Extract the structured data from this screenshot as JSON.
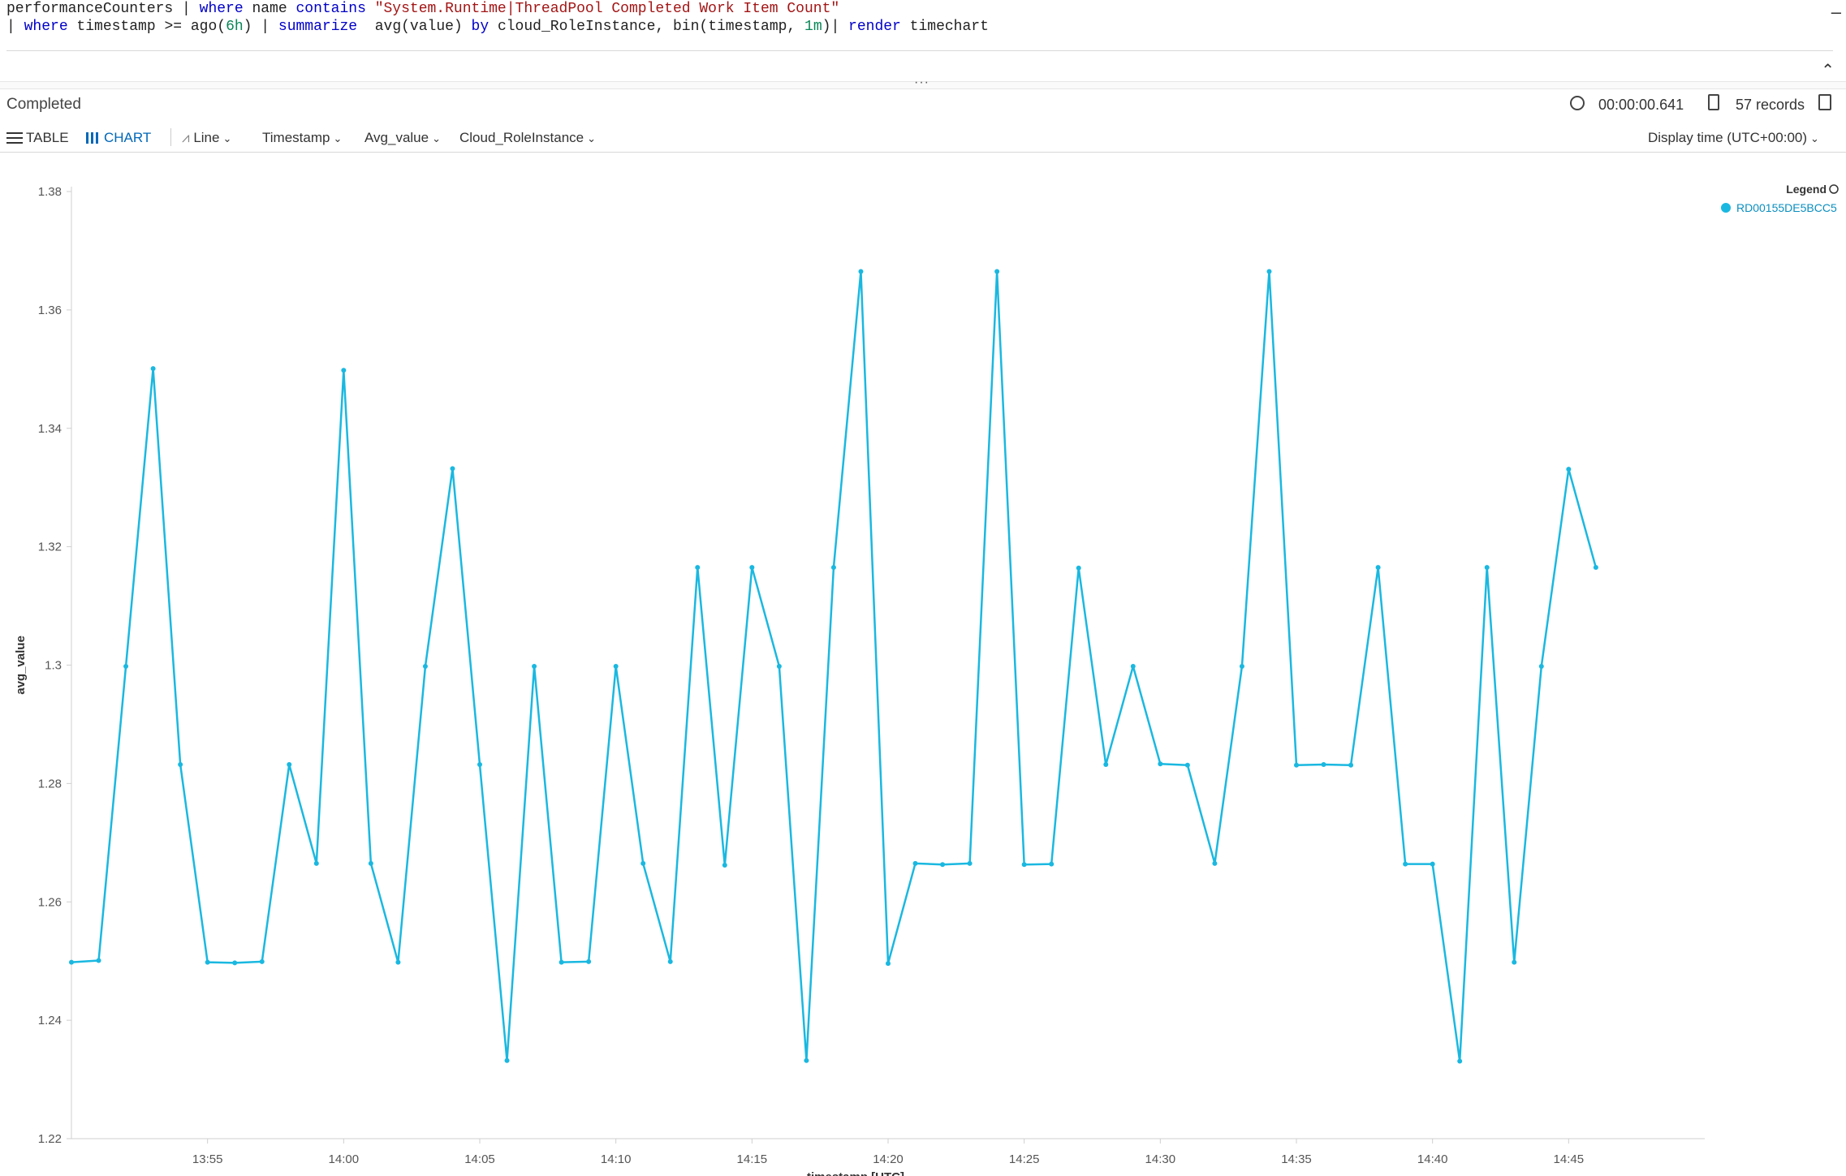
{
  "query": {
    "line1": [
      {
        "t": "performanceCounters | ",
        "c": "txt"
      },
      {
        "t": "where",
        "c": "kw"
      },
      {
        "t": " name ",
        "c": "txt"
      },
      {
        "t": "contains",
        "c": "kw"
      },
      {
        "t": " \"System.Runtime|ThreadPool Completed Work Item Count\"",
        "c": "str"
      }
    ],
    "line2": [
      {
        "t": "| ",
        "c": "txt"
      },
      {
        "t": "where",
        "c": "kw"
      },
      {
        "t": " timestamp >= ago(",
        "c": "txt"
      },
      {
        "t": "6h",
        "c": "num"
      },
      {
        "t": ") | ",
        "c": "txt"
      },
      {
        "t": "summarize",
        "c": "kw"
      },
      {
        "t": "  avg(value) ",
        "c": "txt"
      },
      {
        "t": "by",
        "c": "kw"
      },
      {
        "t": " cloud_RoleInstance, bin(timestamp, ",
        "c": "txt"
      },
      {
        "t": "1m",
        "c": "num"
      },
      {
        "t": ")| ",
        "c": "txt"
      },
      {
        "t": "render",
        "c": "kw"
      },
      {
        "t": " timechart",
        "c": "txt"
      }
    ]
  },
  "status": {
    "text": "Completed",
    "duration": "00:00:00.641",
    "records": "57 records"
  },
  "toolbar": {
    "table_label": "TABLE",
    "chart_label": "CHART",
    "chart_type": "Line",
    "x_column": "Timestamp",
    "y_column": "Avg_value",
    "split_column": "Cloud_RoleInstance",
    "display_time": "Display time (UTC+00:00)"
  },
  "colors": {
    "series": "#1ab8e0",
    "accent": "#0067b8"
  },
  "chart_data": {
    "type": "line",
    "xlabel": "timestamp [UTC]",
    "ylabel": "avg_value",
    "ylim": [
      1.22,
      1.38
    ],
    "yticks": [
      "1.22",
      "1.24",
      "1.26",
      "1.28",
      "1.3",
      "1.32",
      "1.34",
      "1.36",
      "1.38"
    ],
    "xticks": [
      "13:55",
      "14:00",
      "14:05",
      "14:10",
      "14:15",
      "14:20",
      "14:25",
      "14:30",
      "14:35",
      "14:40",
      "14:45"
    ],
    "xtick_minutes": [
      55,
      60,
      65,
      70,
      75,
      80,
      85,
      90,
      95,
      100,
      105
    ],
    "legend_title": "Legend",
    "legend_position": "top-right",
    "grid": false,
    "series": [
      {
        "name": "RD00155DE5BCC5",
        "x_minutes": [
          50,
          51,
          52,
          53,
          54,
          55,
          56,
          57,
          58,
          59,
          60,
          61,
          62,
          63,
          64,
          65,
          66,
          67,
          68,
          69,
          70,
          71,
          72,
          73,
          74,
          75,
          76,
          77,
          78,
          79,
          80,
          81,
          82,
          83,
          84,
          85,
          86,
          87,
          88,
          89,
          90,
          91,
          92,
          93,
          94,
          95,
          96,
          97,
          98,
          99,
          100,
          101,
          102,
          103,
          104,
          105,
          106
        ],
        "values": [
          1.2498,
          1.2501,
          1.2998,
          1.3501,
          1.2832,
          1.2498,
          1.2497,
          1.2499,
          1.2832,
          1.2665,
          1.3498,
          1.2665,
          1.2498,
          1.2998,
          1.3332,
          1.2832,
          1.2332,
          1.2998,
          1.2498,
          1.2499,
          1.2998,
          1.2665,
          1.2499,
          1.3165,
          1.2662,
          1.3165,
          1.2998,
          1.2332,
          1.3165,
          1.3665,
          1.2496,
          1.2665,
          1.2663,
          1.2665,
          1.3665,
          1.2663,
          1.2664,
          1.3164,
          1.2832,
          1.2998,
          1.2833,
          1.2831,
          1.2665,
          1.2998,
          1.3665,
          1.2831,
          1.2832,
          1.2831,
          1.3165,
          1.2664,
          1.2664,
          1.2331,
          1.3165,
          1.2498,
          1.2998,
          1.3331,
          1.3165
        ]
      }
    ]
  }
}
